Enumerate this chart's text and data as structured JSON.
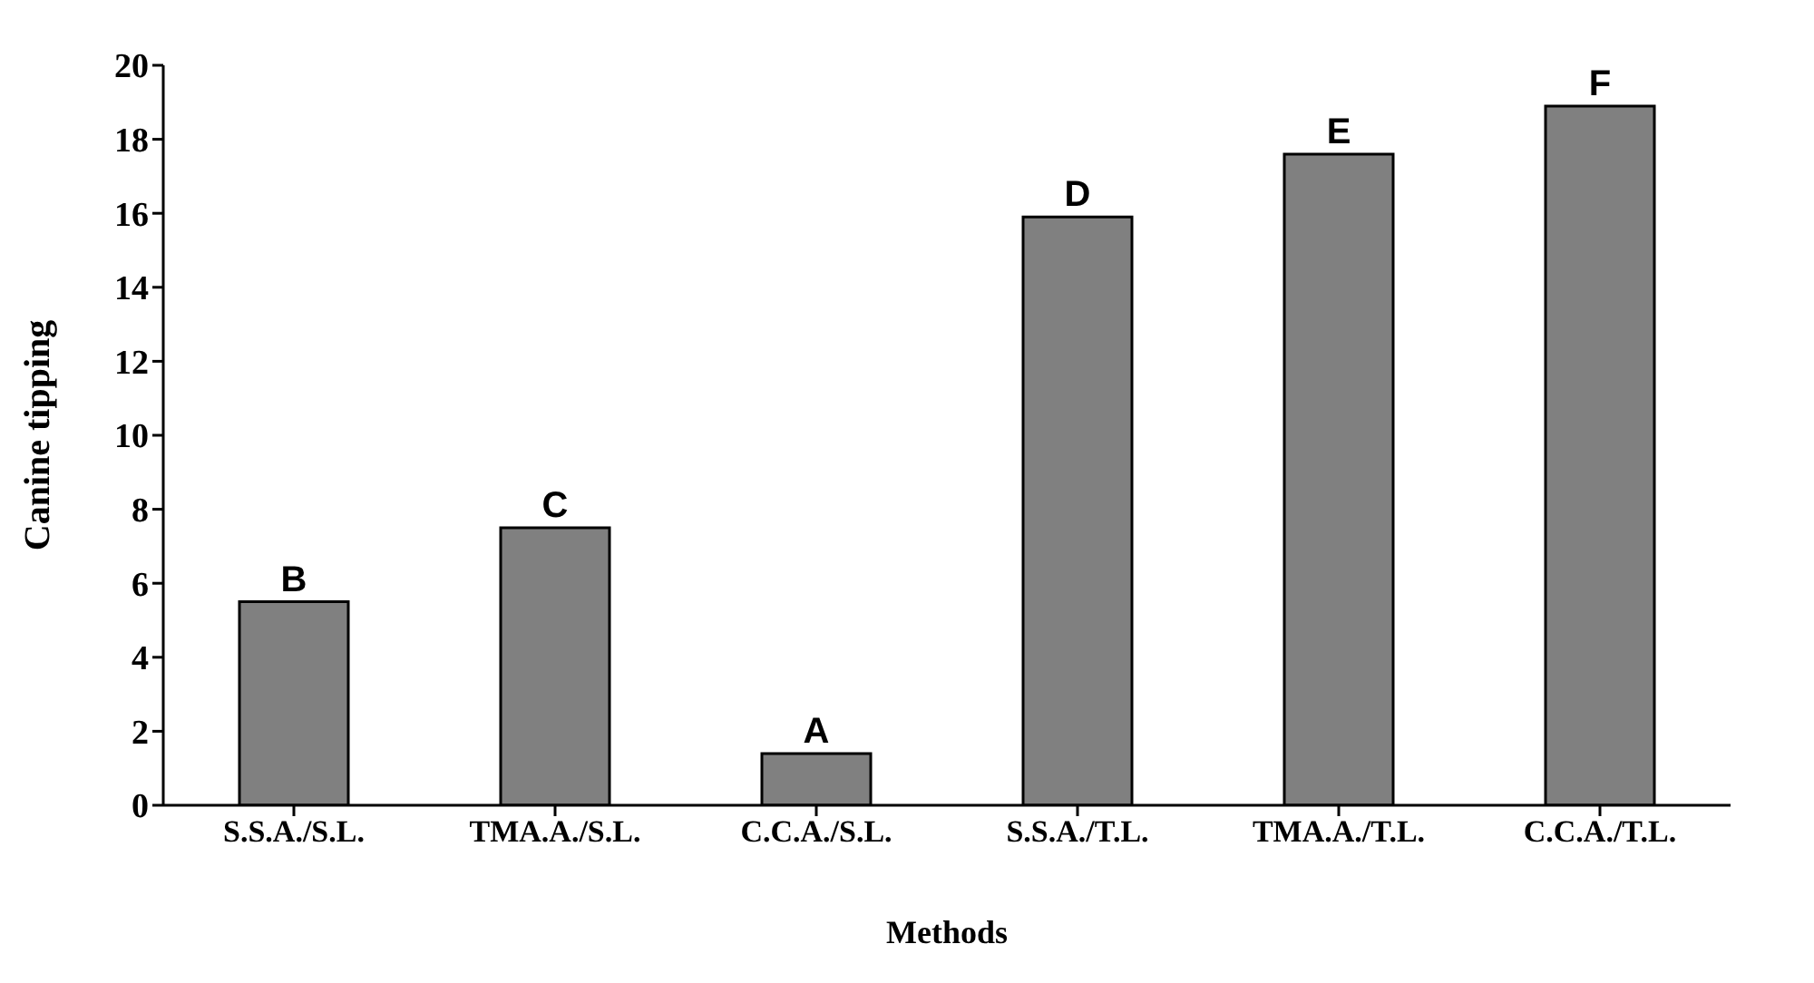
{
  "chart_data": {
    "type": "bar",
    "xlabel": "Methods",
    "ylabel": "Canine tipping",
    "categories": [
      "S.S.A./S.L.",
      "TMA.A./S.L.",
      "C.C.A./S.L.",
      "S.S.A./T.L.",
      "TMA.A./T.L.",
      "C.C.A./T.L."
    ],
    "values": [
      5.5,
      7.5,
      1.4,
      15.9,
      17.6,
      18.9
    ],
    "color": "#808080",
    "ylim": [
      0,
      20
    ],
    "yticks": [
      0,
      2,
      4,
      6,
      8,
      10,
      12,
      14,
      16,
      18,
      20
    ],
    "grid": false,
    "legend": false,
    "annotations": [
      {
        "text": "B",
        "x": "S.S.A./S.L.",
        "y": 5.5
      },
      {
        "text": "C",
        "x": "TMA.A./S.L.",
        "y": 7.5
      },
      {
        "text": "A",
        "x": "C.C.A./S.L.",
        "y": 1.4
      },
      {
        "text": "D",
        "x": "S.S.A./T.L.",
        "y": 15.9
      },
      {
        "text": "E",
        "x": "TMA.A./T.L.",
        "y": 17.6
      },
      {
        "text": "F",
        "x": "C.C.A./T.L.",
        "y": 18.9
      }
    ]
  }
}
